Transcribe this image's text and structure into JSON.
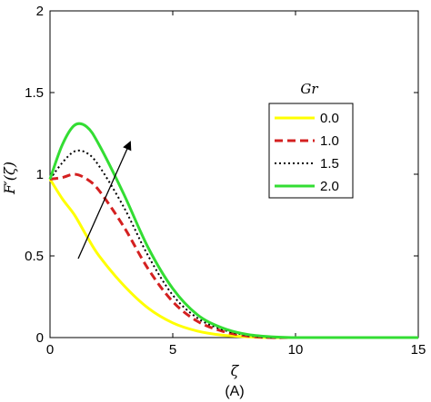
{
  "chart_data": {
    "type": "line",
    "xlabel": "ζ",
    "ylabel": "F′(ζ)",
    "caption": "(A)",
    "xlim": [
      0,
      15
    ],
    "ylim": [
      0,
      2
    ],
    "x_ticks": [
      "0",
      "5",
      "10",
      "15"
    ],
    "y_ticks": [
      "0",
      "0.5",
      "1",
      "1.5",
      "2"
    ],
    "legend": {
      "title": "Gr",
      "position": "right"
    },
    "annotation": "arrow indicating increasing Gr",
    "series": [
      {
        "name": "0.0",
        "color": "#ffff00",
        "dash": "solid",
        "x": [
          0,
          0.5,
          1,
          1.5,
          2,
          3,
          4,
          5,
          6,
          7,
          8,
          9,
          10
        ],
        "y": [
          0.97,
          0.85,
          0.75,
          0.62,
          0.5,
          0.32,
          0.18,
          0.09,
          0.04,
          0.015,
          0.005,
          0.0,
          0.0
        ]
      },
      {
        "name": "1.0",
        "color": "#d42020",
        "dash": "dashed",
        "x": [
          0,
          0.5,
          1,
          1.5,
          2,
          3,
          4,
          5,
          6,
          7,
          8,
          9,
          10
        ],
        "y": [
          0.97,
          0.98,
          1.0,
          0.97,
          0.9,
          0.68,
          0.42,
          0.22,
          0.1,
          0.04,
          0.01,
          0.0,
          0.0
        ]
      },
      {
        "name": "1.5",
        "color": "#000000",
        "dash": "dotted",
        "x": [
          0,
          0.5,
          1,
          1.5,
          2,
          3,
          4,
          5,
          6,
          7,
          8,
          9,
          10
        ],
        "y": [
          0.97,
          1.07,
          1.14,
          1.13,
          1.05,
          0.8,
          0.5,
          0.26,
          0.12,
          0.05,
          0.015,
          0.0,
          0.0
        ]
      },
      {
        "name": "2.0",
        "color": "#33dd33",
        "dash": "solid",
        "x": [
          0,
          0.5,
          1,
          1.5,
          2,
          3,
          4,
          5,
          6,
          7,
          8,
          9,
          10,
          11
        ],
        "y": [
          0.97,
          1.18,
          1.3,
          1.29,
          1.18,
          0.88,
          0.55,
          0.3,
          0.14,
          0.06,
          0.02,
          0.005,
          0.0,
          0.0
        ]
      }
    ]
  }
}
